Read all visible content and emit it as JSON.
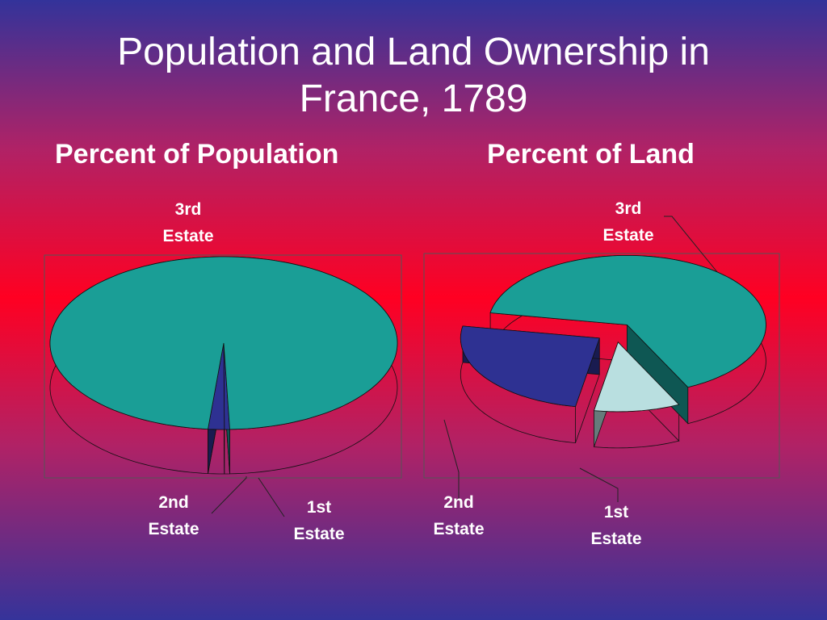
{
  "slide": {
    "title": "Population and Land Ownership in France, 1789"
  },
  "chart_data": [
    {
      "type": "pie",
      "title": "Percent of Population",
      "categories": [
        "1st Estate",
        "2nd Estate",
        "3rd Estate"
      ],
      "values": [
        0.5,
        1.5,
        98
      ],
      "colors": [
        "#2e3192",
        "#2e3192",
        "#1a9e96"
      ],
      "exploded": false
    },
    {
      "type": "pie",
      "title": "Percent of Land",
      "categories": [
        "1st Estate",
        "2nd Estate",
        "3rd Estate"
      ],
      "values": [
        10,
        25,
        65
      ],
      "colors": [
        "#b9dfe0",
        "#2e3192",
        "#1a9e96"
      ],
      "exploded": true
    }
  ]
}
